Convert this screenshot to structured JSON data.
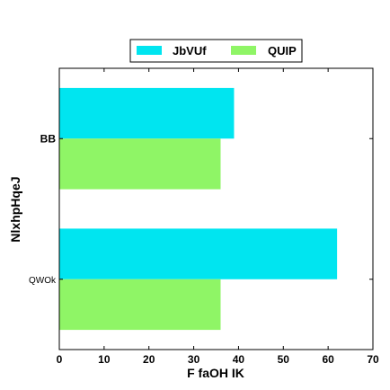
{
  "chart_data": {
    "type": "bar",
    "orientation": "horizontal",
    "categories": [
      "BB",
      "QWOk"
    ],
    "series": [
      {
        "name": "JbVUf",
        "color": "#00e5f0",
        "values": [
          39,
          62
        ]
      },
      {
        "name": "QUIP",
        "color": "#8ff566",
        "values": [
          36,
          36
        ]
      }
    ],
    "xlabel": "F faOH  IK",
    "ylabel": "NlxhpHqeJ",
    "xlim": [
      0,
      70
    ],
    "xticks": [
      "0",
      "10",
      "20",
      "30",
      "40",
      "50",
      "60",
      "70"
    ],
    "grid": false,
    "legend_position": "top-center"
  }
}
